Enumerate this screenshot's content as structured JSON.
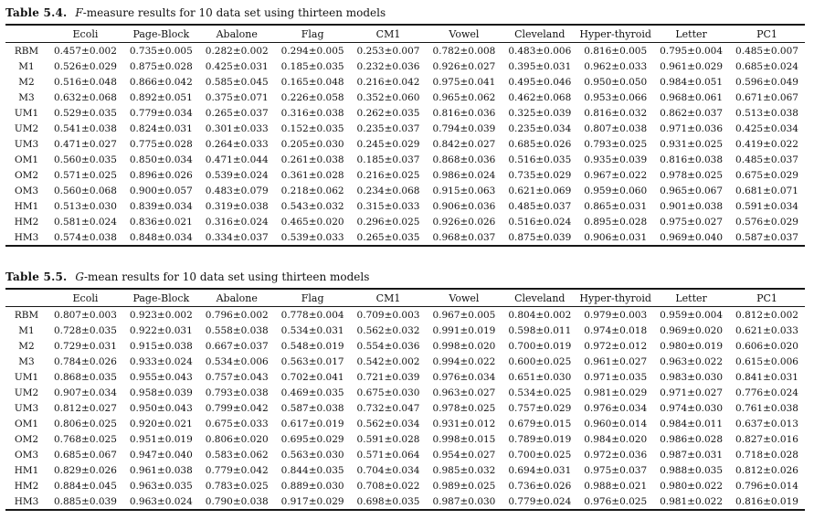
{
  "document": {
    "tables": [
      {
        "label": "Table 5.4.",
        "caption_italic": "F",
        "caption_rest": "-measure results for 10 data set using thirteen models",
        "columns": [
          "Ecoli",
          "Page-Block",
          "Abalone",
          "Flag",
          "CM1",
          "Vowel",
          "Cleveland",
          "Hyper-thyroid",
          "Letter",
          "PC1"
        ],
        "rows": [
          {
            "model": "RBM",
            "values": [
              "0.457±0.002",
              "0.735±0.005",
              "0.282±0.002",
              "0.294±0.005",
              "0.253±0.007",
              "0.782±0.008",
              "0.483±0.006",
              "0.816±0.005",
              "0.795±0.004",
              "0.485±0.007"
            ]
          },
          {
            "model": "M1",
            "values": [
              "0.526±0.029",
              "0.875±0.028",
              "0.425±0.031",
              "0.185±0.035",
              "0.232±0.036",
              "0.926±0.027",
              "0.395±0.031",
              "0.962±0.033",
              "0.961±0.029",
              "0.685±0.024"
            ]
          },
          {
            "model": "M2",
            "values": [
              "0.516±0.048",
              "0.866±0.042",
              "0.585±0.045",
              "0.165±0.048",
              "0.216±0.042",
              "0.975±0.041",
              "0.495±0.046",
              "0.950±0.050",
              "0.984±0.051",
              "0.596±0.049"
            ]
          },
          {
            "model": "M3",
            "values": [
              "0.632±0.068",
              "0.892±0.051",
              "0.375±0.071",
              "0.226±0.058",
              "0.352±0.060",
              "0.965±0.062",
              "0.462±0.068",
              "0.953±0.066",
              "0.968±0.061",
              "0.671±0.067"
            ]
          },
          {
            "model": "UM1",
            "values": [
              "0.529±0.035",
              "0.779±0.034",
              "0.265±0.037",
              "0.316±0.038",
              "0.262±0.035",
              "0.816±0.036",
              "0.325±0.039",
              "0.816±0.032",
              "0.862±0.037",
              "0.513±0.038"
            ]
          },
          {
            "model": "UM2",
            "values": [
              "0.541±0.038",
              "0.824±0.031",
              "0.301±0.033",
              "0.152±0.035",
              "0.235±0.037",
              "0.794±0.039",
              "0.235±0.034",
              "0.807±0.038",
              "0.971±0.036",
              "0.425±0.034"
            ]
          },
          {
            "model": "UM3",
            "values": [
              "0.471±0.027",
              "0.775±0.028",
              "0.264±0.033",
              "0.205±0.030",
              "0.245±0.029",
              "0.842±0.027",
              "0.685±0.026",
              "0.793±0.025",
              "0.931±0.025",
              "0.419±0.022"
            ]
          },
          {
            "model": "OM1",
            "values": [
              "0.560±0.035",
              "0.850±0.034",
              "0.471±0.044",
              "0.261±0.038",
              "0.185±0.037",
              "0.868±0.036",
              "0.516±0.035",
              "0.935±0.039",
              "0.816±0.038",
              "0.485±0.037"
            ]
          },
          {
            "model": "OM2",
            "values": [
              "0.571±0.025",
              "0.896±0.026",
              "0.539±0.024",
              "0.361±0.028",
              "0.216±0.025",
              "0.986±0.024",
              "0.735±0.029",
              "0.967±0.022",
              "0.978±0.025",
              "0.675±0.029"
            ]
          },
          {
            "model": "OM3",
            "values": [
              "0.560±0.068",
              "0.900±0.057",
              "0.483±0.079",
              "0.218±0.062",
              "0.234±0.068",
              "0.915±0.063",
              "0.621±0.069",
              "0.959±0.060",
              "0.965±0.067",
              "0.681±0.071"
            ]
          },
          {
            "model": "HM1",
            "values": [
              "0.513±0.030",
              "0.839±0.034",
              "0.319±0.038",
              "0.543±0.032",
              "0.315±0.033",
              "0.906±0.036",
              "0.485±0.037",
              "0.865±0.031",
              "0.901±0.038",
              "0.591±0.034"
            ]
          },
          {
            "model": "HM2",
            "values": [
              "0.581±0.024",
              "0.836±0.021",
              "0.316±0.024",
              "0.465±0.020",
              "0.296±0.025",
              "0.926±0.026",
              "0.516±0.024",
              "0.895±0.028",
              "0.975±0.027",
              "0.576±0.029"
            ]
          },
          {
            "model": "HM3",
            "values": [
              "0.574±0.038",
              "0.848±0.034",
              "0.334±0.037",
              "0.539±0.033",
              "0.265±0.035",
              "0.968±0.037",
              "0.875±0.039",
              "0.906±0.031",
              "0.969±0.040",
              "0.587±0.037"
            ]
          }
        ]
      },
      {
        "label": "Table 5.5.",
        "caption_italic": "G",
        "caption_rest": "-mean results for 10 data set using thirteen models",
        "columns": [
          "Ecoli",
          "Page-Block",
          "Abalone",
          "Flag",
          "CM1",
          "Vowel",
          "Cleveland",
          "Hyper-thyroid",
          "Letter",
          "PC1"
        ],
        "rows": [
          {
            "model": "RBM",
            "values": [
              "0.807±0.003",
              "0.923±0.002",
              "0.796±0.002",
              "0.778±0.004",
              "0.709±0.003",
              "0.967±0.005",
              "0.804±0.002",
              "0.979±0.003",
              "0.959±0.004",
              "0.812±0.002"
            ]
          },
          {
            "model": "M1",
            "values": [
              "0.728±0.035",
              "0.922±0.031",
              "0.558±0.038",
              "0.534±0.031",
              "0.562±0.032",
              "0.991±0.019",
              "0.598±0.011",
              "0.974±0.018",
              "0.969±0.020",
              "0.621±0.033"
            ]
          },
          {
            "model": "M2",
            "values": [
              "0.729±0.031",
              "0.915±0.038",
              "0.667±0.037",
              "0.548±0.019",
              "0.554±0.036",
              "0.998±0.020",
              "0.700±0.019",
              "0.972±0.012",
              "0.980±0.019",
              "0.606±0.020"
            ]
          },
          {
            "model": "M3",
            "values": [
              "0.784±0.026",
              "0.933±0.024",
              "0.534±0.006",
              "0.563±0.017",
              "0.542±0.002",
              "0.994±0.022",
              "0.600±0.025",
              "0.961±0.027",
              "0.963±0.022",
              "0.615±0.006"
            ]
          },
          {
            "model": "UM1",
            "values": [
              "0.868±0.035",
              "0.955±0.043",
              "0.757±0.043",
              "0.702±0.041",
              "0.721±0.039",
              "0.976±0.034",
              "0.651±0.030",
              "0.971±0.035",
              "0.983±0.030",
              "0.841±0.031"
            ]
          },
          {
            "model": "UM2",
            "values": [
              "0.907±0.034",
              "0.958±0.039",
              "0.793±0.038",
              "0.469±0.035",
              "0.675±0.030",
              "0.963±0.027",
              "0.534±0.025",
              "0.981±0.029",
              "0.971±0.027",
              "0.776±0.024"
            ]
          },
          {
            "model": "UM3",
            "values": [
              "0.812±0.027",
              "0.950±0.043",
              "0.799±0.042",
              "0.587±0.038",
              "0.732±0.047",
              "0.978±0.025",
              "0.757±0.029",
              "0.976±0.034",
              "0.974±0.030",
              "0.761±0.038"
            ]
          },
          {
            "model": "OM1",
            "values": [
              "0.806±0.025",
              "0.920±0.021",
              "0.675±0.033",
              "0.617±0.019",
              "0.562±0.034",
              "0.931±0.012",
              "0.679±0.015",
              "0.960±0.014",
              "0.984±0.011",
              "0.637±0.013"
            ]
          },
          {
            "model": "OM2",
            "values": [
              "0.768±0.025",
              "0.951±0.019",
              "0.806±0.020",
              "0.695±0.029",
              "0.591±0.028",
              "0.998±0.015",
              "0.789±0.019",
              "0.984±0.020",
              "0.986±0.028",
              "0.827±0.016"
            ]
          },
          {
            "model": "OM3",
            "values": [
              "0.685±0.067",
              "0.947±0.040",
              "0.583±0.062",
              "0.563±0.030",
              "0.571±0.064",
              "0.954±0.027",
              "0.700±0.025",
              "0.972±0.036",
              "0.987±0.031",
              "0.718±0.028"
            ]
          },
          {
            "model": "HM1",
            "values": [
              "0.829±0.026",
              "0.961±0.038",
              "0.779±0.042",
              "0.844±0.035",
              "0.704±0.034",
              "0.985±0.032",
              "0.694±0.031",
              "0.975±0.037",
              "0.988±0.035",
              "0.812±0.026"
            ]
          },
          {
            "model": "HM2",
            "values": [
              "0.884±0.045",
              "0.963±0.035",
              "0.783±0.025",
              "0.889±0.030",
              "0.708±0.022",
              "0.989±0.025",
              "0.736±0.026",
              "0.988±0.021",
              "0.980±0.022",
              "0.796±0.014"
            ]
          },
          {
            "model": "HM3",
            "values": [
              "0.885±0.039",
              "0.963±0.024",
              "0.790±0.038",
              "0.917±0.029",
              "0.698±0.035",
              "0.987±0.030",
              "0.779±0.024",
              "0.976±0.025",
              "0.981±0.022",
              "0.816±0.019"
            ]
          }
        ]
      }
    ]
  }
}
